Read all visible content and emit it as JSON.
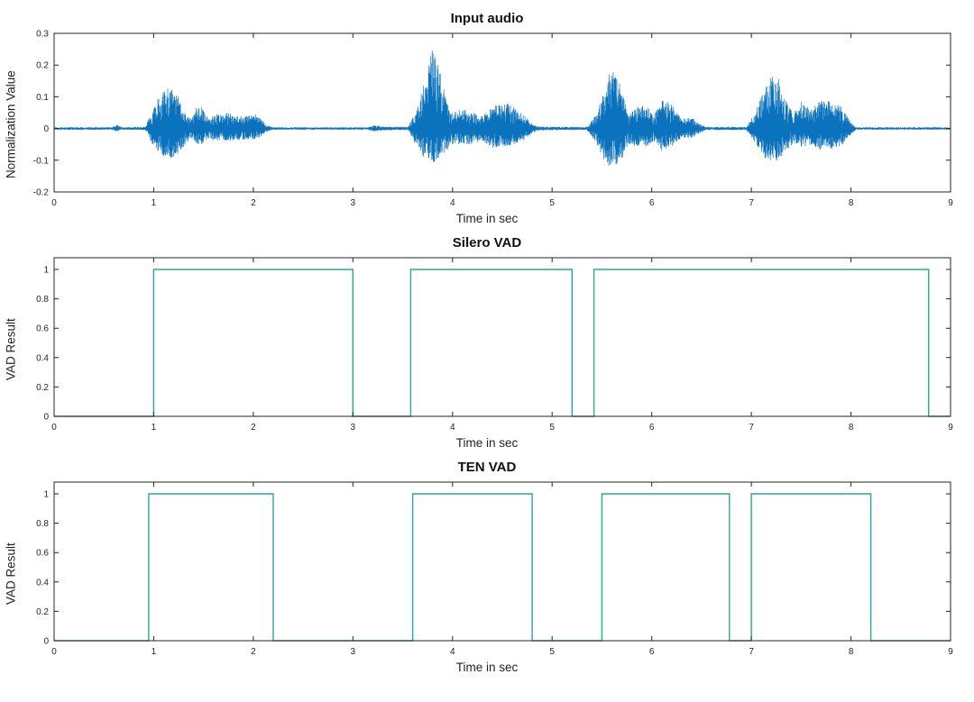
{
  "figure": {
    "background": "#ffffff",
    "axis_color": "#262626"
  },
  "chart_data": [
    {
      "type": "area",
      "kind": "waveform",
      "title": "Input audio",
      "xlabel": "Time in sec",
      "ylabel": "Normalization Value",
      "xlim": [
        0,
        9
      ],
      "ylim": [
        -0.2,
        0.3
      ],
      "xticks": [
        0,
        1,
        2,
        3,
        4,
        5,
        6,
        7,
        8,
        9
      ],
      "yticks": [
        -0.2,
        -0.1,
        0,
        0.1,
        0.2,
        0.3
      ],
      "color": "#0b72bd",
      "grid": false,
      "envelope": [
        [
          0,
          0.004,
          0.004
        ],
        [
          0.58,
          0.004,
          0.004
        ],
        [
          0.63,
          0.013,
          0.01
        ],
        [
          0.68,
          0.004,
          0.004
        ],
        [
          0.92,
          0.005,
          0.005
        ],
        [
          0.97,
          0.05,
          0.04
        ],
        [
          1.05,
          0.1,
          0.08
        ],
        [
          1.15,
          0.135,
          0.1
        ],
        [
          1.25,
          0.1,
          0.08
        ],
        [
          1.32,
          0.05,
          0.05
        ],
        [
          1.38,
          0.03,
          0.03
        ],
        [
          1.43,
          0.068,
          0.05
        ],
        [
          1.48,
          0.07,
          0.05
        ],
        [
          1.55,
          0.03,
          0.03
        ],
        [
          1.62,
          0.045,
          0.04
        ],
        [
          1.75,
          0.05,
          0.04
        ],
        [
          1.9,
          0.04,
          0.035
        ],
        [
          2.05,
          0.045,
          0.035
        ],
        [
          2.12,
          0.012,
          0.012
        ],
        [
          2.2,
          0.004,
          0.004
        ],
        [
          3.15,
          0.004,
          0.004
        ],
        [
          3.22,
          0.012,
          0.01
        ],
        [
          3.3,
          0.006,
          0.006
        ],
        [
          3.55,
          0.005,
          0.005
        ],
        [
          3.62,
          0.045,
          0.045
        ],
        [
          3.7,
          0.13,
          0.09
        ],
        [
          3.78,
          0.26,
          0.11
        ],
        [
          3.85,
          0.21,
          0.1
        ],
        [
          3.95,
          0.08,
          0.07
        ],
        [
          4.0,
          0.05,
          0.05
        ],
        [
          4.1,
          0.062,
          0.05
        ],
        [
          4.2,
          0.055,
          0.05
        ],
        [
          4.3,
          0.04,
          0.04
        ],
        [
          4.4,
          0.075,
          0.06
        ],
        [
          4.55,
          0.08,
          0.06
        ],
        [
          4.7,
          0.05,
          0.04
        ],
        [
          4.78,
          0.02,
          0.02
        ],
        [
          4.85,
          0.006,
          0.006
        ],
        [
          5.35,
          0.005,
          0.005
        ],
        [
          5.45,
          0.05,
          0.05
        ],
        [
          5.55,
          0.15,
          0.12
        ],
        [
          5.62,
          0.225,
          0.13
        ],
        [
          5.7,
          0.12,
          0.1
        ],
        [
          5.78,
          0.05,
          0.05
        ],
        [
          5.86,
          0.07,
          0.06
        ],
        [
          5.95,
          0.075,
          0.06
        ],
        [
          6.02,
          0.04,
          0.04
        ],
        [
          6.1,
          0.09,
          0.07
        ],
        [
          6.2,
          0.08,
          0.06
        ],
        [
          6.3,
          0.032,
          0.03
        ],
        [
          6.4,
          0.035,
          0.03
        ],
        [
          6.5,
          0.012,
          0.012
        ],
        [
          6.55,
          0.005,
          0.005
        ],
        [
          6.95,
          0.005,
          0.005
        ],
        [
          7.05,
          0.06,
          0.05
        ],
        [
          7.15,
          0.14,
          0.1
        ],
        [
          7.25,
          0.185,
          0.11
        ],
        [
          7.35,
          0.09,
          0.07
        ],
        [
          7.42,
          0.05,
          0.05
        ],
        [
          7.5,
          0.085,
          0.06
        ],
        [
          7.6,
          0.06,
          0.05
        ],
        [
          7.7,
          0.09,
          0.07
        ],
        [
          7.8,
          0.085,
          0.065
        ],
        [
          7.9,
          0.07,
          0.06
        ],
        [
          8.0,
          0.02,
          0.02
        ],
        [
          8.05,
          0.004,
          0.004
        ],
        [
          8.95,
          0.004,
          0.004
        ],
        [
          9,
          0.004,
          0.004
        ]
      ]
    },
    {
      "type": "line",
      "kind": "step",
      "title": "Silero VAD",
      "xlabel": "Time in sec",
      "ylabel": "VAD Result",
      "xlim": [
        0,
        9
      ],
      "ylim": [
        0,
        1.08
      ],
      "xticks": [
        0,
        1,
        2,
        3,
        4,
        5,
        6,
        7,
        8,
        9
      ],
      "yticks": [
        0,
        0.2,
        0.4,
        0.6,
        0.8,
        1
      ],
      "color": "#2aa79b",
      "grid": false,
      "segments": [
        [
          1.0,
          3.0
        ],
        [
          3.58,
          5.2
        ],
        [
          5.42,
          8.78
        ]
      ]
    },
    {
      "type": "line",
      "kind": "step",
      "title": "TEN VAD",
      "xlabel": "Time in sec",
      "ylabel": "VAD Result",
      "xlim": [
        0,
        9
      ],
      "ylim": [
        0,
        1.08
      ],
      "xticks": [
        0,
        1,
        2,
        3,
        4,
        5,
        6,
        7,
        8,
        9
      ],
      "yticks": [
        0,
        0.2,
        0.4,
        0.6,
        0.8,
        1
      ],
      "color": "#2aa79b",
      "grid": false,
      "segments": [
        [
          0.95,
          2.2
        ],
        [
          3.6,
          4.8
        ],
        [
          5.5,
          6.78
        ],
        [
          7.0,
          8.2
        ]
      ]
    }
  ]
}
